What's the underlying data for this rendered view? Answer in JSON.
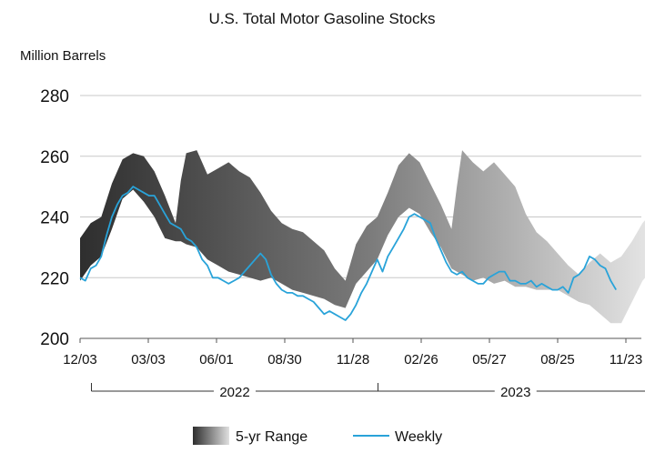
{
  "chart_data": {
    "type": "area",
    "title": "U.S. Total Motor Gasoline Stocks",
    "ylabel": "Million Barrels",
    "ylim": [
      200,
      280
    ],
    "yticks": [
      200,
      220,
      240,
      260,
      280
    ],
    "x_start": "2021-12-03",
    "x_end": "2023-12-29",
    "x_tick_labels": [
      {
        "label": "12/03",
        "date": "2021-12-03"
      },
      {
        "label": "03/03",
        "date": "2022-03-03"
      },
      {
        "label": "06/01",
        "date": "2022-06-01"
      },
      {
        "label": "08/30",
        "date": "2022-08-30"
      },
      {
        "label": "11/28",
        "date": "2022-11-28"
      },
      {
        "label": "02/26",
        "date": "2023-02-26"
      },
      {
        "label": "05/27",
        "date": "2023-05-27"
      },
      {
        "label": "08/25",
        "date": "2023-08-25"
      },
      {
        "label": "11/23",
        "date": "2023-11-23"
      }
    ],
    "year_groups": [
      {
        "label": "2022",
        "start": "2021-12-18",
        "end": "2022-12-31"
      },
      {
        "label": "2023",
        "start": "2022-12-31",
        "end": "2023-12-29"
      }
    ],
    "grid": true,
    "legend_position": "bottom",
    "series": [
      {
        "name": "5-yr Range",
        "kind": "range",
        "x": [
          "2021-12-03",
          "2021-12-17",
          "2021-12-31",
          "2022-01-14",
          "2022-01-28",
          "2022-02-11",
          "2022-02-25",
          "2022-03-11",
          "2022-03-25",
          "2022-04-08",
          "2022-04-15",
          "2022-04-22",
          "2022-05-06",
          "2022-05-20",
          "2022-06-03",
          "2022-06-17",
          "2022-07-01",
          "2022-07-15",
          "2022-07-29",
          "2022-08-12",
          "2022-08-26",
          "2022-09-09",
          "2022-09-23",
          "2022-10-07",
          "2022-10-21",
          "2022-11-04",
          "2022-11-18",
          "2022-12-02",
          "2022-12-16",
          "2022-12-30",
          "2023-01-13",
          "2023-01-27",
          "2023-02-10",
          "2023-02-24",
          "2023-03-10",
          "2023-03-24",
          "2023-04-07",
          "2023-04-14",
          "2023-04-21",
          "2023-05-05",
          "2023-05-19",
          "2023-06-02",
          "2023-06-16",
          "2023-06-30",
          "2023-07-14",
          "2023-07-28",
          "2023-08-11",
          "2023-08-25",
          "2023-09-08",
          "2023-09-22",
          "2023-10-06",
          "2023-10-20",
          "2023-11-03",
          "2023-11-17",
          "2023-12-01",
          "2023-12-15",
          "2023-12-29"
        ],
        "high": [
          233,
          238,
          240,
          251,
          259,
          261,
          260,
          255,
          247,
          238,
          252,
          261,
          262,
          254,
          256,
          258,
          255,
          253,
          248,
          242,
          238,
          236,
          235,
          232,
          229,
          223,
          219,
          231,
          237,
          240,
          248,
          257,
          261,
          258,
          251,
          244,
          236,
          250,
          262,
          258,
          255,
          258,
          254,
          250,
          241,
          235,
          232,
          228,
          224,
          221,
          225,
          228,
          225,
          227,
          232,
          238,
          242
        ],
        "low": [
          219,
          224,
          227,
          236,
          246,
          249,
          245,
          240,
          233,
          232,
          232,
          231,
          230,
          226,
          224,
          222,
          221,
          220,
          219,
          220,
          218,
          216,
          215,
          214,
          213,
          211,
          210,
          218,
          222,
          226,
          234,
          240,
          243,
          241,
          235,
          230,
          223,
          222,
          221,
          219,
          220,
          218,
          219,
          217,
          217,
          216,
          216,
          216,
          214,
          212,
          211,
          208,
          205,
          205,
          212,
          219,
          223
        ]
      },
      {
        "name": "Weekly",
        "kind": "line",
        "color": "#29a3d9",
        "x": [
          "2021-12-03",
          "2021-12-10",
          "2021-12-17",
          "2021-12-24",
          "2021-12-31",
          "2022-01-07",
          "2022-01-14",
          "2022-01-21",
          "2022-01-28",
          "2022-02-04",
          "2022-02-11",
          "2022-02-18",
          "2022-02-25",
          "2022-03-04",
          "2022-03-11",
          "2022-03-18",
          "2022-03-25",
          "2022-04-01",
          "2022-04-08",
          "2022-04-15",
          "2022-04-22",
          "2022-04-29",
          "2022-05-06",
          "2022-05-13",
          "2022-05-20",
          "2022-05-27",
          "2022-06-03",
          "2022-06-10",
          "2022-06-17",
          "2022-06-24",
          "2022-07-01",
          "2022-07-08",
          "2022-07-15",
          "2022-07-22",
          "2022-07-29",
          "2022-08-05",
          "2022-08-12",
          "2022-08-19",
          "2022-08-26",
          "2022-09-02",
          "2022-09-09",
          "2022-09-16",
          "2022-09-23",
          "2022-09-30",
          "2022-10-07",
          "2022-10-14",
          "2022-10-21",
          "2022-10-28",
          "2022-11-04",
          "2022-11-11",
          "2022-11-18",
          "2022-11-25",
          "2022-12-02",
          "2022-12-09",
          "2022-12-16",
          "2022-12-23",
          "2022-12-30",
          "2023-01-06",
          "2023-01-13",
          "2023-01-20",
          "2023-01-27",
          "2023-02-03",
          "2023-02-10",
          "2023-02-17",
          "2023-02-24",
          "2023-03-03",
          "2023-03-10",
          "2023-03-17",
          "2023-03-24",
          "2023-03-31",
          "2023-04-07",
          "2023-04-14",
          "2023-04-21",
          "2023-04-28",
          "2023-05-05",
          "2023-05-12",
          "2023-05-19",
          "2023-05-26",
          "2023-06-02",
          "2023-06-09",
          "2023-06-16",
          "2023-06-23",
          "2023-06-30",
          "2023-07-07",
          "2023-07-14",
          "2023-07-21",
          "2023-07-28",
          "2023-08-04",
          "2023-08-11",
          "2023-08-18",
          "2023-08-25",
          "2023-09-01",
          "2023-09-08",
          "2023-09-15",
          "2023-09-22",
          "2023-09-29",
          "2023-10-06",
          "2023-10-13",
          "2023-10-20",
          "2023-10-27",
          "2023-11-03",
          "2023-11-10"
        ],
        "values": [
          220,
          219,
          223,
          224,
          227,
          234,
          240,
          244,
          247,
          248,
          250,
          249,
          248,
          247,
          247,
          244,
          241,
          238,
          237,
          236,
          233,
          232,
          230,
          226,
          224,
          220,
          220,
          219,
          218,
          219,
          220,
          222,
          224,
          226,
          228,
          226,
          221,
          218,
          216,
          215,
          215,
          214,
          214,
          213,
          212,
          210,
          208,
          209,
          208,
          207,
          206,
          208,
          211,
          215,
          218,
          222,
          226,
          222,
          227,
          230,
          233,
          236,
          240,
          241,
          240,
          239,
          238,
          233,
          229,
          225,
          222,
          221,
          222,
          220,
          219,
          218,
          218,
          220,
          221,
          222,
          222,
          219,
          219,
          218,
          218,
          219,
          217,
          218,
          217,
          216,
          216,
          217,
          215,
          220,
          221,
          223,
          227,
          226,
          224,
          223,
          219,
          216
        ]
      }
    ]
  }
}
